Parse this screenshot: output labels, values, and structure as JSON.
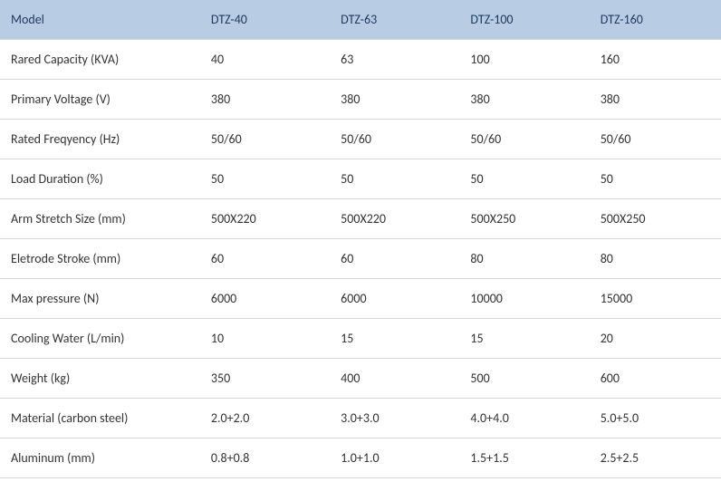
{
  "table": {
    "header_bg": "#b8cce4",
    "header_color": "#1f3a5f",
    "border_color": "#d4d4d4",
    "text_color": "#333333",
    "columns": [
      "Model",
      "DTZ-40",
      "DTZ-63",
      "DTZ-100",
      "DTZ-160"
    ],
    "rows": [
      [
        "Rared Capacity (KVA)",
        "40",
        "63",
        "100",
        "160"
      ],
      [
        "Primary Voltage (V)",
        "380",
        "380",
        "380",
        "380"
      ],
      [
        "Rated Freqyency (Hz)",
        "50/60",
        "50/60",
        "50/60",
        "50/60"
      ],
      [
        "Load Duration (%)",
        "50",
        "50",
        "50",
        "50"
      ],
      [
        "Arm Stretch Size (mm)",
        "500X220",
        "500X220",
        "500X250",
        "500X250"
      ],
      [
        "Eletrode Stroke (mm)",
        "60",
        "60",
        "80",
        "80"
      ],
      [
        "Max pressure (N)",
        "6000",
        "6000",
        "10000",
        "15000"
      ],
      [
        "Cooling Water (L/min)",
        "10",
        "15",
        "15",
        "20"
      ],
      [
        "Weight (kg)",
        "350",
        "400",
        "500",
        "600"
      ],
      [
        "Material (carbon steel)",
        "2.0+2.0",
        "3.0+3.0",
        "4.0+4.0",
        "5.0+5.0"
      ],
      [
        "Aluminum (mm)",
        "0.8+0.8",
        "1.0+1.0",
        "1.5+1.5",
        "2.5+2.5"
      ]
    ]
  }
}
